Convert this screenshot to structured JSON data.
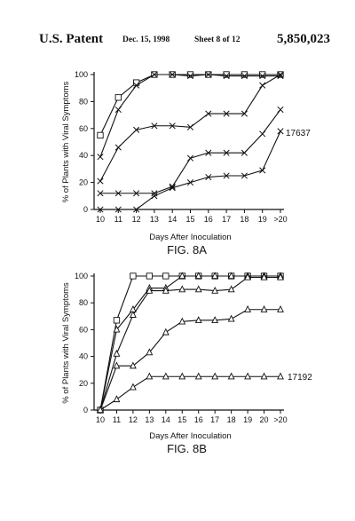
{
  "header": {
    "left": "U.S. Patent",
    "date": "Dec. 15, 1998",
    "sheet": "Sheet 8 of 12",
    "number": "5,850,023"
  },
  "chart_data": [
    {
      "type": "line",
      "figure_label": "FIG. 8A",
      "xlabel": "Days After Inoculation",
      "ylabel": "% of Plants with Viral Symptoms",
      "categories": [
        "10",
        "11",
        "12",
        "13",
        "14",
        "15",
        "16",
        "17",
        "18",
        "19",
        ">20"
      ],
      "ylim": [
        0,
        100
      ],
      "yticks": [
        0,
        20,
        40,
        60,
        80,
        100
      ],
      "annotation": {
        "text": "17637"
      },
      "series": [
        {
          "marker": "square",
          "values": [
            55,
            83,
            94,
            100,
            100,
            100,
            100,
            100,
            100,
            100,
            100
          ]
        },
        {
          "marker": "x",
          "values": [
            39,
            74,
            92,
            100,
            100,
            99,
            100,
            99,
            99,
            99,
            99
          ]
        },
        {
          "marker": "x",
          "values": [
            21,
            46,
            59,
            62,
            62,
            61,
            71,
            71,
            71,
            92,
            100
          ]
        },
        {
          "marker": "x",
          "values": [
            12,
            12,
            12,
            12,
            17,
            38,
            42,
            42,
            42,
            56,
            74
          ]
        },
        {
          "marker": "x",
          "values": [
            0,
            0,
            0,
            10,
            16,
            20,
            24,
            25,
            25,
            29,
            58
          ]
        }
      ]
    },
    {
      "type": "line",
      "figure_label": "FIG. 8B",
      "xlabel": "Days After Inoculation",
      "ylabel": "% of Plants with Viral Symptoms",
      "categories": [
        "10",
        "11",
        "12",
        "13",
        "14",
        "15",
        "16",
        "17",
        "18",
        "19",
        "20",
        ">20"
      ],
      "ylim": [
        0,
        100
      ],
      "yticks": [
        0,
        20,
        40,
        60,
        80,
        100
      ],
      "annotation": {
        "text": "17192"
      },
      "series": [
        {
          "marker": "square",
          "values": [
            0,
            67,
            100,
            100,
            100,
            100,
            100,
            100,
            100,
            100,
            100,
            100
          ]
        },
        {
          "marker": "triangle",
          "values": [
            0,
            60,
            75,
            91,
            91,
            100,
            100,
            100,
            100,
            100,
            100,
            100
          ]
        },
        {
          "marker": "triangle",
          "values": [
            0,
            42,
            71,
            89,
            89,
            90,
            90,
            89,
            90,
            99,
            99,
            99
          ]
        },
        {
          "marker": "triangle",
          "values": [
            0,
            33,
            33,
            43,
            58,
            66,
            67,
            67,
            68,
            75,
            75,
            75
          ]
        },
        {
          "marker": "triangle",
          "values": [
            0,
            8,
            17,
            25,
            25,
            25,
            25,
            25,
            25,
            25,
            25,
            25
          ]
        }
      ]
    }
  ]
}
